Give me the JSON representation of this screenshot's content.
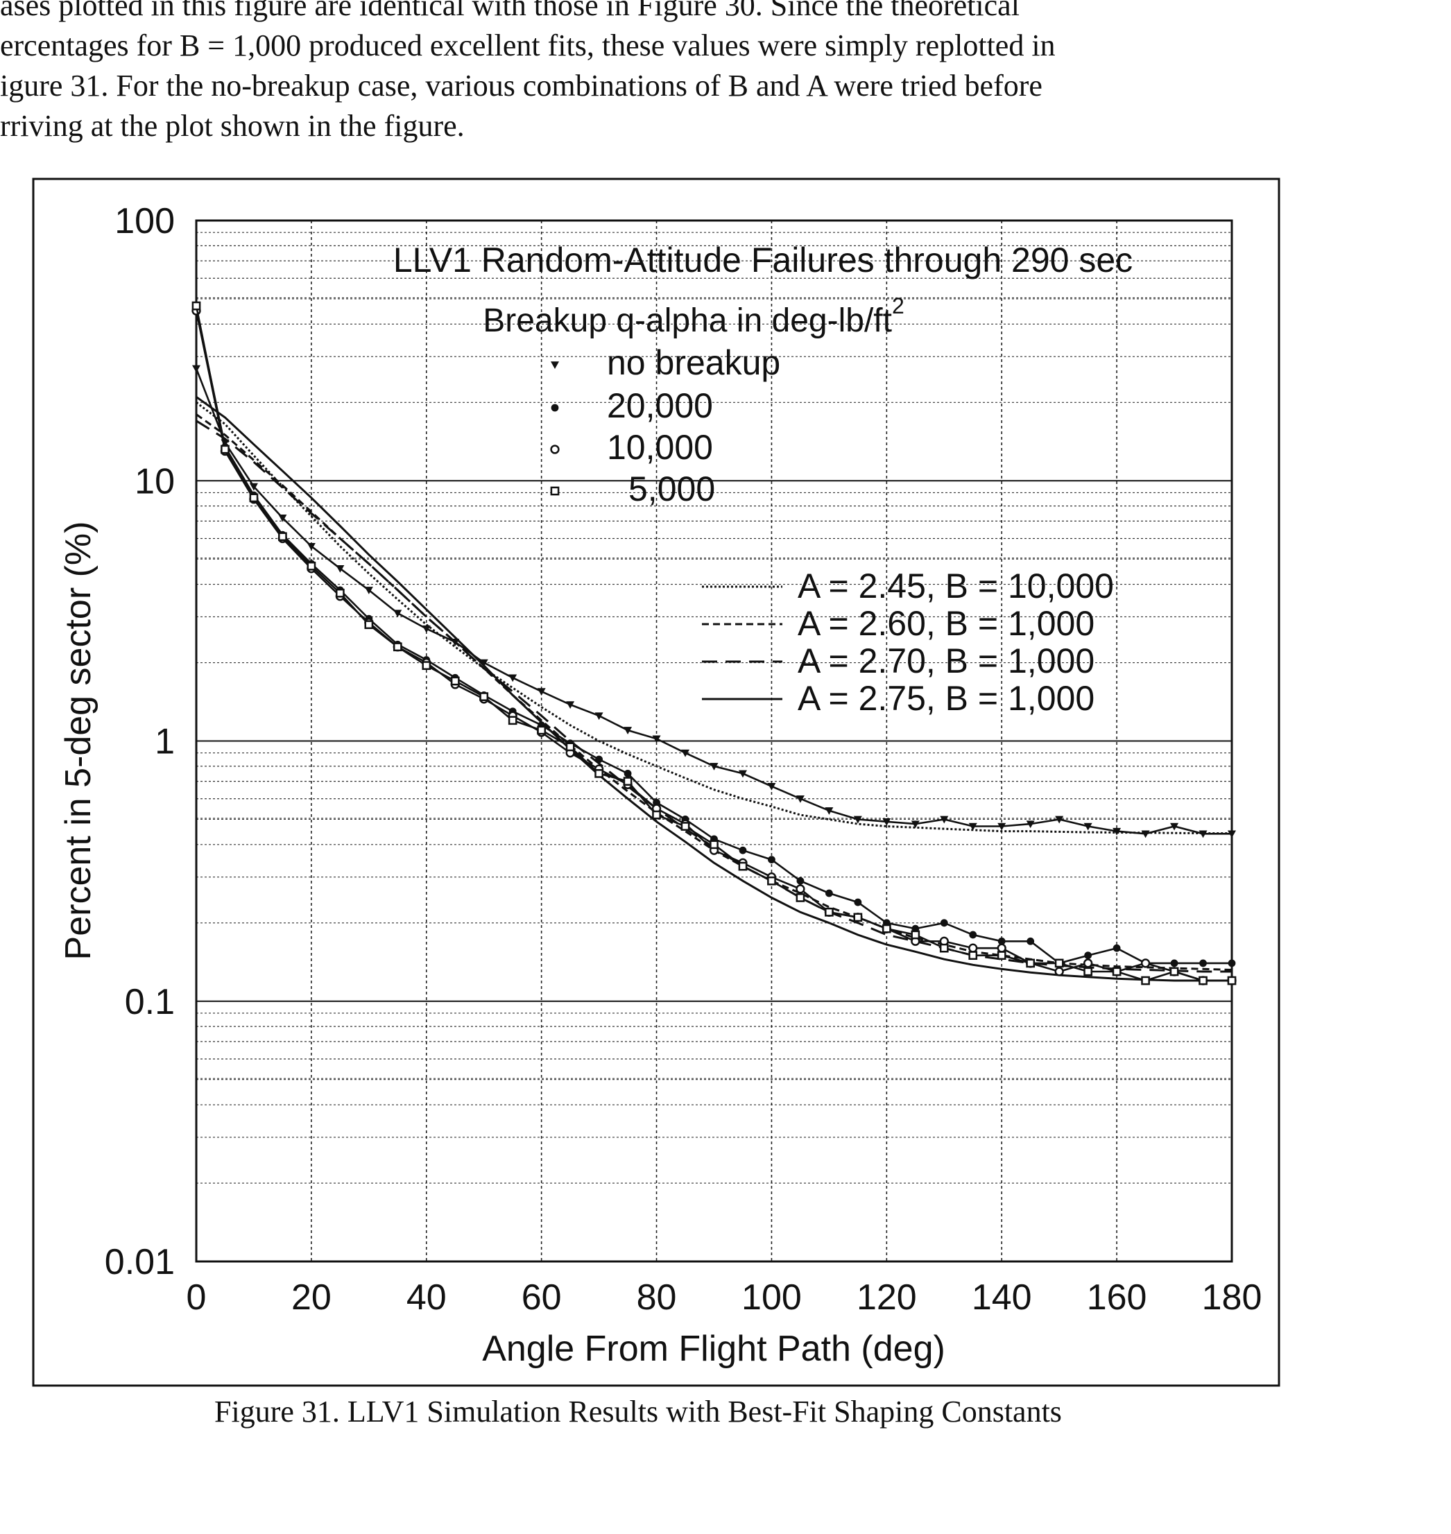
{
  "intro_lines": [
    "ases plotted in this figure are identical with those in Figure 30.  Since the theoretical",
    "ercentages for B = 1,000 produced excellent fits, these values were simply replotted in",
    "igure 31.  For the no-breakup case, various combinations of B and A were tried before",
    "rriving at the plot shown in the figure."
  ],
  "caption": "Figure 31. LLV1 Simulation Results with Best-Fit Shaping Constants",
  "chart_data": {
    "type": "line",
    "title": "LLV1 Random-Attitude Failures through 290 sec",
    "legend_title": "Breakup q-alpha in deg-lb/ft",
    "legend_title_superscript": "2",
    "xlabel": "Angle From Flight Path (deg)",
    "ylabel": "Percent in 5-deg sector (%)",
    "x_scale": "linear",
    "y_scale": "log",
    "xlim": [
      0,
      180
    ],
    "ylim": [
      0.01,
      100
    ],
    "x_ticks": [
      "0",
      "20",
      "40",
      "60",
      "80",
      "100",
      "120",
      "140",
      "160",
      "180"
    ],
    "x_tick_values": [
      0,
      20,
      40,
      60,
      80,
      100,
      120,
      140,
      160,
      180
    ],
    "y_ticks": [
      "0.01",
      "0.1",
      "1",
      "10",
      "100"
    ],
    "y_tick_values": [
      0.01,
      0.1,
      1,
      10,
      100
    ],
    "grid": true,
    "x": [
      0,
      5,
      10,
      15,
      20,
      25,
      30,
      35,
      40,
      45,
      50,
      55,
      60,
      65,
      70,
      75,
      80,
      85,
      90,
      95,
      100,
      105,
      110,
      115,
      120,
      125,
      130,
      135,
      140,
      145,
      150,
      155,
      160,
      165,
      170,
      175,
      180
    ],
    "series": [
      {
        "name": "no breakup",
        "marker": "triangle-down",
        "values": [
          27,
          14,
          9.5,
          7.2,
          5.6,
          4.6,
          3.8,
          3.1,
          2.7,
          2.4,
          2.0,
          1.75,
          1.55,
          1.38,
          1.25,
          1.1,
          1.02,
          0.9,
          0.8,
          0.75,
          0.67,
          0.6,
          0.54,
          0.5,
          0.49,
          0.48,
          0.5,
          0.47,
          0.47,
          0.48,
          0.5,
          0.47,
          0.45,
          0.44,
          0.47,
          0.44,
          0.44
        ]
      },
      {
        "name": "20,000",
        "marker": "filled-circle",
        "values": [
          46,
          13.5,
          8.8,
          6.2,
          4.8,
          3.8,
          2.95,
          2.35,
          2.05,
          1.75,
          1.5,
          1.3,
          1.15,
          0.98,
          0.85,
          0.75,
          0.58,
          0.5,
          0.42,
          0.38,
          0.35,
          0.29,
          0.26,
          0.24,
          0.2,
          0.19,
          0.2,
          0.18,
          0.17,
          0.17,
          0.14,
          0.15,
          0.16,
          0.14,
          0.14,
          0.14,
          0.14
        ]
      },
      {
        "name": "10,000",
        "marker": "open-circle",
        "values": [
          45,
          13,
          8.5,
          6.0,
          4.6,
          3.6,
          2.85,
          2.3,
          2.0,
          1.65,
          1.45,
          1.25,
          1.08,
          0.9,
          0.78,
          0.68,
          0.55,
          0.48,
          0.38,
          0.34,
          0.3,
          0.27,
          0.22,
          0.21,
          0.19,
          0.17,
          0.17,
          0.16,
          0.16,
          0.14,
          0.13,
          0.14,
          0.13,
          0.14,
          0.13,
          0.12,
          0.12
        ]
      },
      {
        "name": "5,000",
        "marker": "open-square",
        "values": [
          47,
          13.2,
          8.6,
          6.1,
          4.7,
          3.7,
          2.8,
          2.3,
          1.95,
          1.7,
          1.48,
          1.2,
          1.1,
          0.95,
          0.75,
          0.7,
          0.52,
          0.47,
          0.4,
          0.33,
          0.29,
          0.25,
          0.22,
          0.21,
          0.19,
          0.18,
          0.16,
          0.15,
          0.15,
          0.14,
          0.14,
          0.13,
          0.13,
          0.12,
          0.13,
          0.12,
          0.12
        ]
      }
    ],
    "fits": [
      {
        "name": "A = 2.45, B = 10,000",
        "dash": "dense-dot",
        "values": [
          20,
          16.5,
          12.5,
          9.5,
          7.3,
          5.6,
          4.4,
          3.5,
          2.8,
          2.3,
          1.9,
          1.6,
          1.35,
          1.15,
          1.0,
          0.89,
          0.8,
          0.72,
          0.65,
          0.6,
          0.56,
          0.52,
          0.5,
          0.48,
          0.47,
          0.465,
          0.46,
          0.455,
          0.45,
          0.45,
          0.448,
          0.446,
          0.445,
          0.444,
          0.443,
          0.442,
          0.442
        ]
      },
      {
        "name": "A = 2.60, B = 1,000",
        "dash": "fine-dash",
        "values": [
          18,
          15,
          12,
          9.6,
          7.6,
          6.0,
          4.8,
          3.8,
          3.0,
          2.4,
          1.9,
          1.5,
          1.2,
          0.96,
          0.78,
          0.64,
          0.53,
          0.45,
          0.38,
          0.33,
          0.29,
          0.26,
          0.23,
          0.21,
          0.19,
          0.175,
          0.165,
          0.155,
          0.15,
          0.145,
          0.14,
          0.138,
          0.136,
          0.135,
          0.134,
          0.133,
          0.132
        ]
      },
      {
        "name": "A = 2.70, B = 1,000",
        "dash": "long-dash",
        "values": [
          17,
          14.5,
          11.8,
          9.4,
          7.5,
          6.0,
          4.8,
          3.8,
          3.0,
          2.4,
          1.9,
          1.55,
          1.25,
          1.0,
          0.82,
          0.67,
          0.55,
          0.46,
          0.39,
          0.33,
          0.29,
          0.25,
          0.22,
          0.2,
          0.18,
          0.17,
          0.16,
          0.15,
          0.145,
          0.14,
          0.137,
          0.135,
          0.133,
          0.132,
          0.131,
          0.13,
          0.13
        ]
      },
      {
        "name": "A = 2.75, B = 1,000",
        "dash": "solid",
        "values": [
          21,
          17.5,
          13.8,
          10.9,
          8.6,
          6.7,
          5.2,
          4.1,
          3.2,
          2.5,
          1.95,
          1.5,
          1.18,
          0.93,
          0.74,
          0.6,
          0.49,
          0.41,
          0.34,
          0.29,
          0.25,
          0.22,
          0.2,
          0.18,
          0.165,
          0.155,
          0.145,
          0.138,
          0.133,
          0.129,
          0.126,
          0.124,
          0.122,
          0.121,
          0.12,
          0.12,
          0.12
        ]
      }
    ]
  }
}
